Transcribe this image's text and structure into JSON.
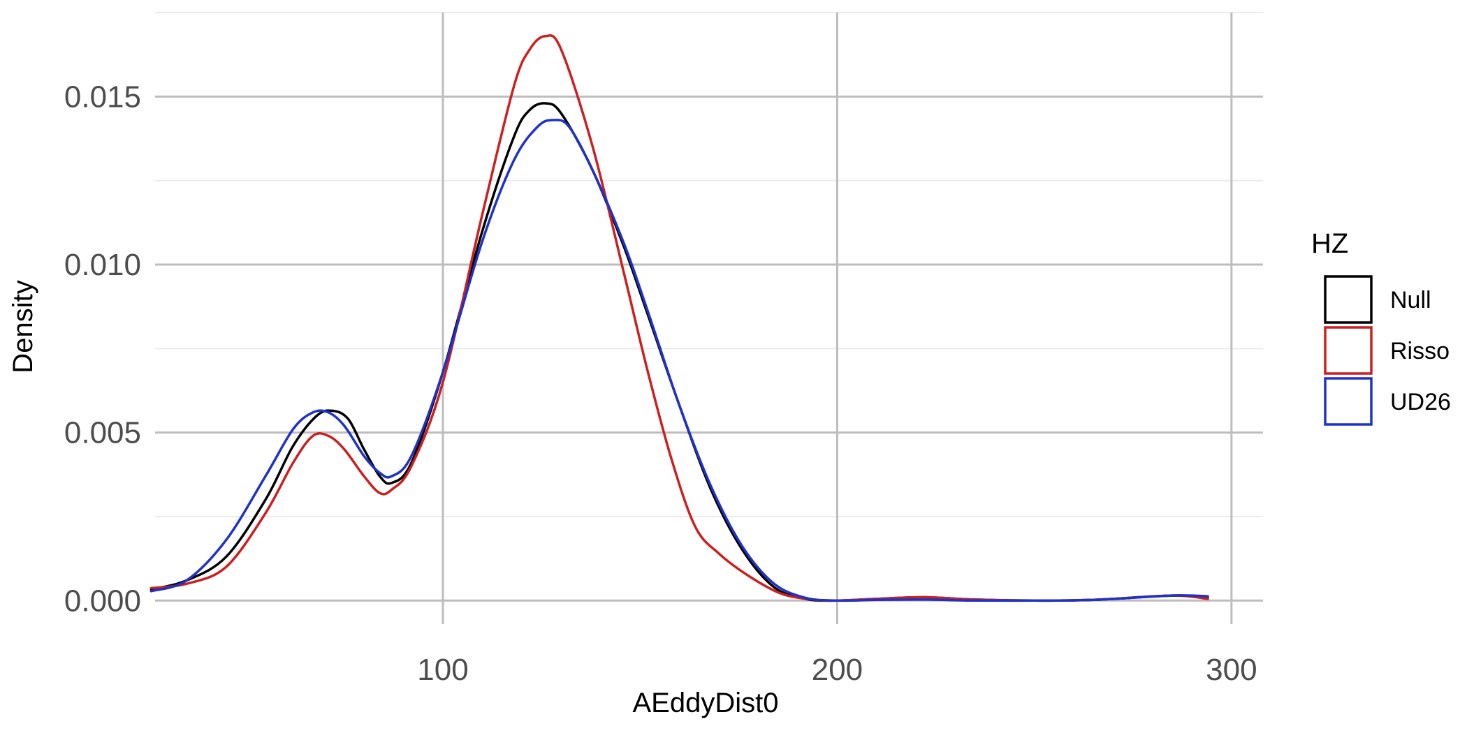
{
  "chart_data": {
    "type": "line",
    "subtype": "density",
    "xlabel": "AEddyDist0",
    "ylabel": "Density",
    "xlim": [
      27,
      308
    ],
    "ylim": [
      -0.0007,
      0.0175
    ],
    "x_ticks": [
      100,
      200,
      300
    ],
    "x_tick_labels": [
      "100",
      "200",
      "300"
    ],
    "y_ticks": [
      0,
      0.005,
      0.01,
      0.015
    ],
    "y_tick_labels": [
      "0.000",
      "0.005",
      "0.010",
      "0.015"
    ],
    "grid": true,
    "legend": {
      "title": "HZ",
      "position": "right"
    },
    "series": [
      {
        "name": "Null",
        "color": "#000000",
        "points": [
          [
            26,
            0.00033
          ],
          [
            35,
            0.0006
          ],
          [
            45,
            0.0013
          ],
          [
            55,
            0.003
          ],
          [
            62,
            0.0046
          ],
          [
            68,
            0.0055
          ],
          [
            72,
            0.00565
          ],
          [
            76,
            0.0054
          ],
          [
            80,
            0.0045
          ],
          [
            84,
            0.0037
          ],
          [
            87,
            0.0035
          ],
          [
            92,
            0.0041
          ],
          [
            100,
            0.0068
          ],
          [
            110,
            0.011
          ],
          [
            118,
            0.0138
          ],
          [
            122,
            0.0146
          ],
          [
            126,
            0.0148
          ],
          [
            130,
            0.0145
          ],
          [
            138,
            0.0128
          ],
          [
            146,
            0.0105
          ],
          [
            152,
            0.0085
          ],
          [
            160,
            0.0058
          ],
          [
            168,
            0.0033
          ],
          [
            176,
            0.0015
          ],
          [
            184,
            0.0004
          ],
          [
            192,
            5e-05
          ],
          [
            200,
            0.0
          ],
          [
            210,
            5e-05
          ],
          [
            222,
            0.0001
          ],
          [
            235,
            3e-05
          ],
          [
            250,
            0.0
          ],
          [
            265,
            2e-05
          ],
          [
            285,
            0.00015
          ],
          [
            294,
            0.0001
          ]
        ]
      },
      {
        "name": "Risso",
        "color": "#cc1f1f",
        "points": [
          [
            26,
            0.00037
          ],
          [
            35,
            0.0005
          ],
          [
            45,
            0.001
          ],
          [
            55,
            0.0026
          ],
          [
            62,
            0.0041
          ],
          [
            67,
            0.0049
          ],
          [
            71,
            0.0049
          ],
          [
            75,
            0.0045
          ],
          [
            80,
            0.0037
          ],
          [
            84,
            0.0032
          ],
          [
            87,
            0.0033
          ],
          [
            92,
            0.004
          ],
          [
            100,
            0.0065
          ],
          [
            110,
            0.0115
          ],
          [
            118,
            0.0153
          ],
          [
            122,
            0.0164
          ],
          [
            126,
            0.0168
          ],
          [
            130,
            0.0164
          ],
          [
            138,
            0.0135
          ],
          [
            146,
            0.0097
          ],
          [
            152,
            0.0068
          ],
          [
            158,
            0.0042
          ],
          [
            164,
            0.0022
          ],
          [
            170,
            0.0014
          ],
          [
            178,
            0.0007
          ],
          [
            186,
            0.0002
          ],
          [
            194,
            3e-05
          ],
          [
            200,
            0.0
          ],
          [
            210,
            5e-05
          ],
          [
            222,
            0.0001
          ],
          [
            235,
            3e-05
          ],
          [
            250,
            0.0
          ],
          [
            265,
            2e-05
          ],
          [
            285,
            0.00015
          ],
          [
            294,
            5e-05
          ]
        ]
      },
      {
        "name": "UD26",
        "color": "#1f32c8",
        "points": [
          [
            26,
            0.00028
          ],
          [
            35,
            0.0006
          ],
          [
            45,
            0.0018
          ],
          [
            55,
            0.0037
          ],
          [
            62,
            0.0051
          ],
          [
            67,
            0.0056
          ],
          [
            71,
            0.0056
          ],
          [
            75,
            0.0052
          ],
          [
            80,
            0.0043
          ],
          [
            84,
            0.0038
          ],
          [
            87,
            0.0037
          ],
          [
            92,
            0.0043
          ],
          [
            100,
            0.0068
          ],
          [
            110,
            0.0107
          ],
          [
            118,
            0.0131
          ],
          [
            124,
            0.0141
          ],
          [
            128,
            0.0143
          ],
          [
            132,
            0.0141
          ],
          [
            138,
            0.0128
          ],
          [
            146,
            0.0106
          ],
          [
            152,
            0.0086
          ],
          [
            160,
            0.0058
          ],
          [
            168,
            0.0034
          ],
          [
            176,
            0.0016
          ],
          [
            184,
            0.0005
          ],
          [
            192,
            8e-05
          ],
          [
            200,
            0.0
          ],
          [
            210,
            2e-05
          ],
          [
            222,
            3e-05
          ],
          [
            235,
            0.0
          ],
          [
            250,
            0.0
          ],
          [
            265,
            2e-05
          ],
          [
            285,
            0.00015
          ],
          [
            294,
            0.00013
          ]
        ]
      }
    ]
  }
}
